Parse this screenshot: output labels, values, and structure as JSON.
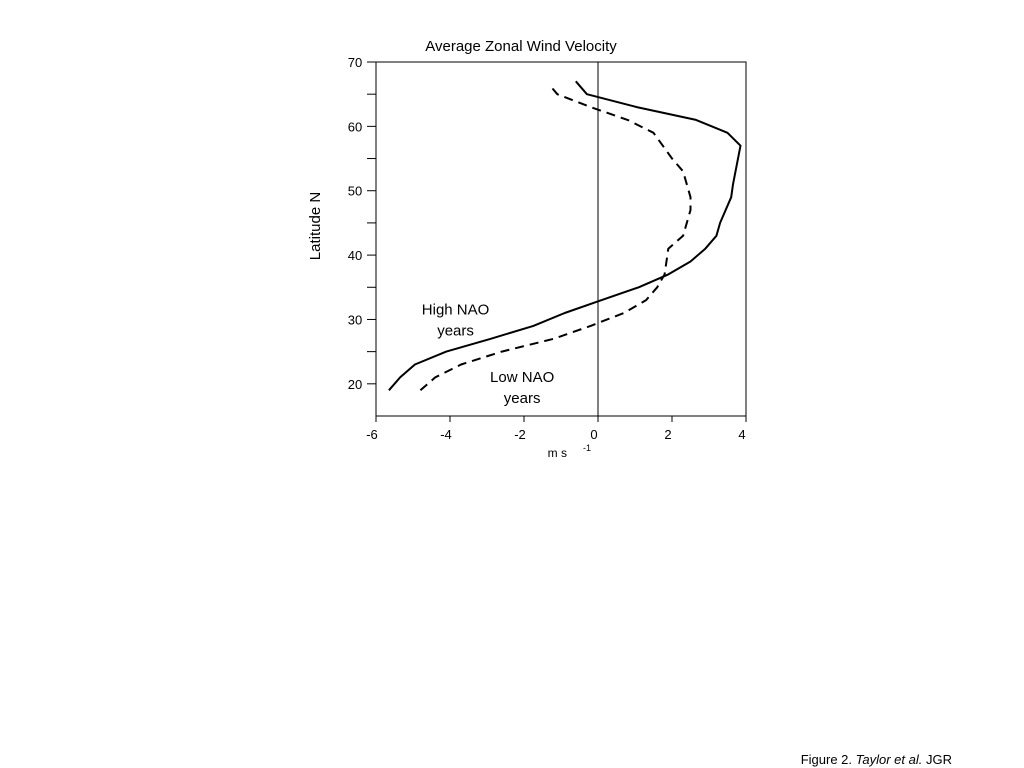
{
  "chart_data": {
    "type": "line",
    "title": "Average Zonal Wind Velocity",
    "xlabel": "m s",
    "xlabel_superscript": "-1",
    "ylabel": "Latitude N",
    "xlim": [
      -6,
      4
    ],
    "ylim": [
      15,
      70
    ],
    "x_ticks": [
      "-6",
      "-4",
      "-2",
      "0",
      "2",
      "4"
    ],
    "y_ticks": [
      "20",
      "30",
      "40",
      "50",
      "60",
      "70"
    ],
    "grid": false,
    "legend": "none",
    "series": [
      {
        "name": "High NAO years",
        "style": "solid",
        "color": "#000000",
        "x": [
          -5.65,
          -5.35,
          -4.95,
          -4.1,
          -2.9,
          -1.75,
          -0.9,
          0.1,
          1.1,
          1.9,
          2.5,
          2.9,
          3.2,
          3.3,
          3.6,
          3.65,
          3.85,
          3.5,
          2.65,
          1.05,
          -0.3,
          -0.6
        ],
        "y": [
          19,
          21,
          23,
          25,
          27,
          29,
          31,
          33,
          35,
          37,
          39,
          41,
          43,
          45,
          49,
          51,
          57,
          59,
          61,
          63,
          65,
          67
        ]
      },
      {
        "name": "Low NAO years",
        "style": "dashed",
        "color": "#000000",
        "x": [
          -4.8,
          -4.4,
          -3.7,
          -2.6,
          -1.2,
          -0.2,
          0.7,
          1.3,
          1.6,
          1.8,
          1.9,
          2.3,
          2.5,
          2.5,
          2.3,
          2.0,
          1.5,
          0.8,
          -0.2,
          -1.1,
          -1.25
        ],
        "y": [
          19,
          21,
          23,
          25,
          27,
          29,
          31,
          33,
          35,
          37,
          41,
          43,
          47,
          49,
          53,
          55,
          59,
          61,
          63,
          65,
          66
        ]
      }
    ],
    "annotations": [
      {
        "lines": [
          "High NAO",
          "years"
        ],
        "x": -3.85,
        "y": 30
      },
      {
        "lines": [
          "Low NAO",
          "years"
        ],
        "x": -2.05,
        "y": 19.5
      }
    ]
  },
  "caption": {
    "prefix": "Figure 2. ",
    "authors": "Taylor et al.",
    "suffix": " JGR"
  }
}
